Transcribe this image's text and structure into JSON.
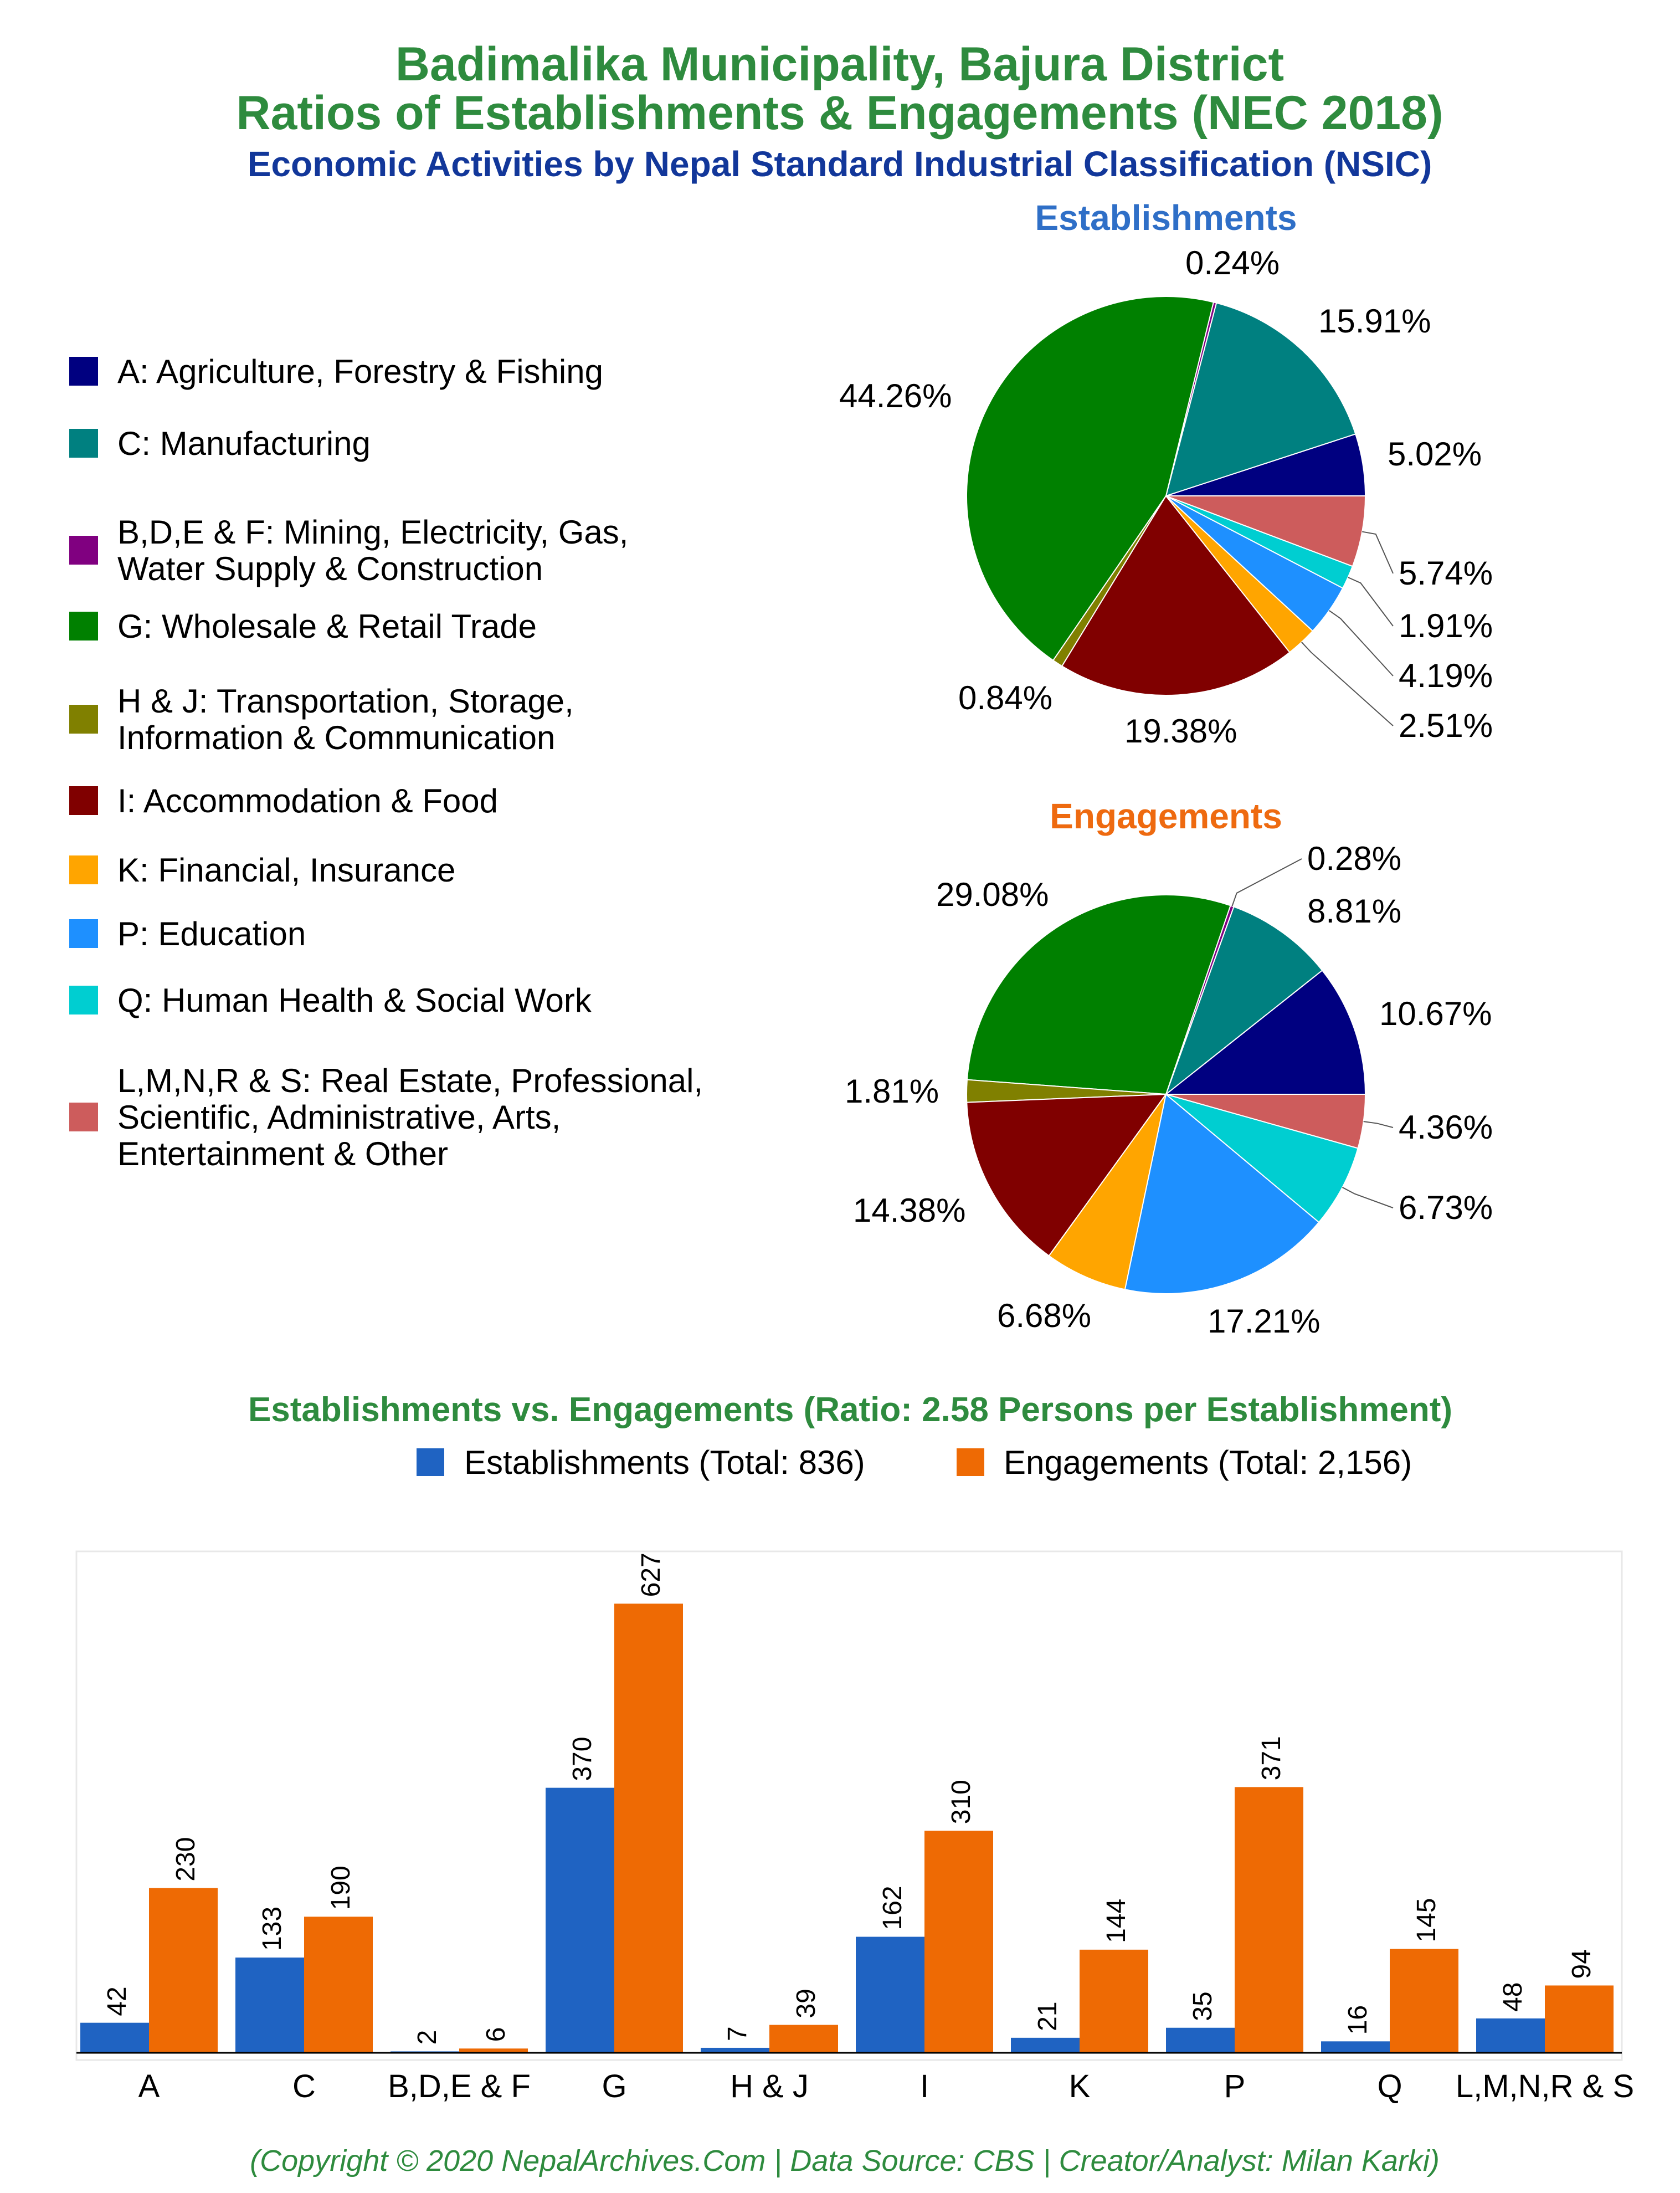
{
  "header": {
    "title_line1": "Badimalika Municipality, Bajura District",
    "title_line2": "Ratios of Establishments & Engagements (NEC 2018)",
    "subtitle": "Economic Activities by Nepal Standard Industrial Classification (NSIC)"
  },
  "colors": {
    "title_green": "#2e8b3e",
    "subtitle_blue": "#12379a",
    "establishments_blue": "#2f6fc7",
    "engagements_orange": "#ee6a10",
    "bar_blue": "#1f63c2",
    "bar_orange": "#ee6a04"
  },
  "legend": [
    {
      "label_lines": [
        "A: Agriculture, Forestry & Fishing"
      ],
      "color": "#000080"
    },
    {
      "label_lines": [
        "C: Manufacturing"
      ],
      "color": "#008080"
    },
    {
      "label_lines": [
        "B,D,E & F: Mining, Electricity, Gas,",
        "Water Supply & Construction"
      ],
      "color": "#800080"
    },
    {
      "label_lines": [
        "G: Wholesale & Retail Trade"
      ],
      "color": "#008000"
    },
    {
      "label_lines": [
        "H & J: Transportation, Storage,",
        "Information & Communication"
      ],
      "color": "#808000"
    },
    {
      "label_lines": [
        "I: Accommodation & Food"
      ],
      "color": "#800000"
    },
    {
      "label_lines": [
        "K: Financial, Insurance"
      ],
      "color": "#ffa500"
    },
    {
      "label_lines": [
        "P: Education"
      ],
      "color": "#1e90ff"
    },
    {
      "label_lines": [
        "Q: Human Health & Social Work"
      ],
      "color": "#00ced1"
    },
    {
      "label_lines": [
        "L,M,N,R & S: Real Estate, Professional,",
        "Scientific, Administrative, Arts,",
        "Entertainment & Other"
      ],
      "color": "#cd5c5c"
    }
  ],
  "chart_data": [
    {
      "type": "pie",
      "title": "Establishments",
      "categories": [
        "A",
        "C",
        "B,D,E & F",
        "G",
        "H & J",
        "I",
        "K",
        "P",
        "Q",
        "L,M,N,R & S"
      ],
      "values": [
        5.02,
        15.91,
        0.24,
        44.26,
        0.84,
        19.38,
        2.51,
        4.19,
        1.91,
        5.74
      ],
      "labels": [
        "5.02%",
        "15.91%",
        "0.24%",
        "44.26%",
        "0.84%",
        "19.38%",
        "2.51%",
        "4.19%",
        "1.91%",
        "5.74%"
      ]
    },
    {
      "type": "pie",
      "title": "Engagements",
      "categories": [
        "A",
        "C",
        "B,D,E & F",
        "G",
        "H & J",
        "I",
        "K",
        "P",
        "Q",
        "L,M,N,R & S"
      ],
      "values": [
        10.67,
        8.81,
        0.28,
        29.08,
        1.81,
        14.38,
        6.68,
        17.21,
        6.73,
        4.36
      ],
      "labels": [
        "10.67%",
        "8.81%",
        "0.28%",
        "29.08%",
        "1.81%",
        "14.38%",
        "6.68%",
        "17.21%",
        "6.73%",
        "4.36%"
      ]
    },
    {
      "type": "bar",
      "title": "Establishments vs. Engagements (Ratio: 2.58 Persons per Establishment)",
      "categories": [
        "A",
        "C",
        "B,D,E & F",
        "G",
        "H & J",
        "I",
        "K",
        "P",
        "Q",
        "L,M,N,R & S"
      ],
      "series": [
        {
          "name": "Establishments (Total: 836)",
          "values": [
            42,
            133,
            2,
            370,
            7,
            162,
            21,
            35,
            16,
            48
          ]
        },
        {
          "name": "Engagements (Total: 2,156)",
          "values": [
            230,
            190,
            6,
            627,
            39,
            310,
            144,
            371,
            145,
            94
          ]
        }
      ],
      "ylim": [
        0,
        700
      ]
    }
  ],
  "footer": {
    "copyright": "(Copyright © 2020 NepalArchives.Com | Data Source: CBS | Creator/Analyst: Milan Karki)"
  }
}
